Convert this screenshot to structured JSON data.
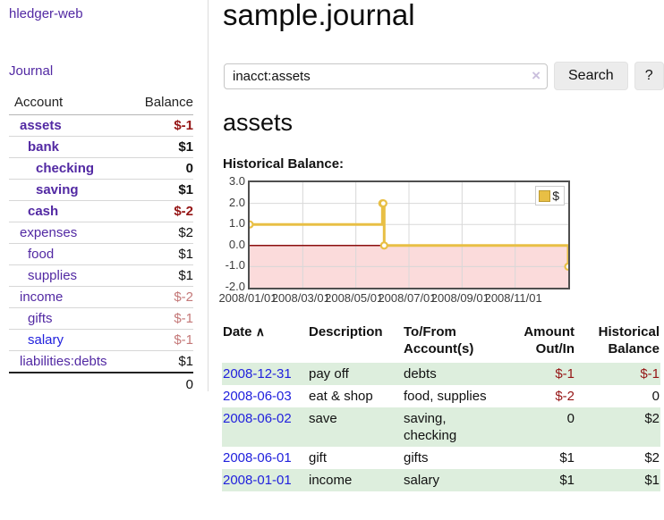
{
  "app": {
    "brand": "hledger-web"
  },
  "nav": {
    "journal": "Journal"
  },
  "sidebar": {
    "headers": {
      "account": "Account",
      "balance": "Balance"
    },
    "accounts": [
      {
        "account": "assets",
        "balance": "$-1",
        "depth": 1,
        "bold": true,
        "bal_class": "neg-strong"
      },
      {
        "account": "bank",
        "balance": "$1",
        "depth": 2,
        "bold": true,
        "bal_class": ""
      },
      {
        "account": "checking",
        "balance": "0",
        "depth": 3,
        "bold": true,
        "bal_class": ""
      },
      {
        "account": "saving",
        "balance": "$1",
        "depth": 3,
        "bold": true,
        "bal_class": ""
      },
      {
        "account": "cash",
        "balance": "$-2",
        "depth": 2,
        "bold": true,
        "bal_class": "neg-strong"
      },
      {
        "account": "expenses",
        "balance": "$2",
        "depth": 1,
        "bold": false,
        "bal_class": ""
      },
      {
        "account": "food",
        "balance": "$1",
        "depth": 2,
        "bold": false,
        "bal_class": ""
      },
      {
        "account": "supplies",
        "balance": "$1",
        "depth": 2,
        "bold": false,
        "bal_class": ""
      },
      {
        "account": "income",
        "balance": "$-2",
        "depth": 1,
        "bold": false,
        "bal_class": "neg-soft"
      },
      {
        "account": "gifts",
        "balance": "$-1",
        "depth": 2,
        "bold": false,
        "bal_class": "neg-soft"
      },
      {
        "account": "salary",
        "balance": "$-1",
        "depth": 2,
        "bold": false,
        "bal_class": "neg-soft",
        "link_class": "blue"
      },
      {
        "account": "liabilities:debts",
        "balance": "$1",
        "depth": 1,
        "bold": false,
        "bal_class": ""
      }
    ],
    "total": "0"
  },
  "header": {
    "title": "sample.journal"
  },
  "search": {
    "value": "inacct:assets",
    "clear_icon": "×",
    "button_label": "Search",
    "help_label": "?"
  },
  "main": {
    "heading": "assets",
    "chart_label": "Historical Balance:"
  },
  "chart_data": {
    "type": "line",
    "title": "Historical Balance:",
    "step": true,
    "series": [
      {
        "name": "$",
        "color": "#e8bf45",
        "points": [
          [
            "2008/01/01",
            1.0
          ],
          [
            "2008/06/01",
            2.0
          ],
          [
            "2008/06/02",
            2.0
          ],
          [
            "2008/06/03",
            0.0
          ],
          [
            "2008/12/31",
            -1.0
          ]
        ]
      }
    ],
    "ylim": [
      -2.0,
      3.0
    ],
    "yticks": [
      3.0,
      2.0,
      1.0,
      0.0,
      -1.0,
      -2.0
    ],
    "xticks": [
      "2008/01/01",
      "2008/03/01",
      "2008/05/01",
      "2008/07/01",
      "2008/09/01",
      "2008/11/01"
    ],
    "x_start": "2008/01/01",
    "x_end": "2008/12/31",
    "legend": {
      "label": "$",
      "position": "top-right"
    },
    "grid": true,
    "negative_fill": "#fbdbdb",
    "zero_line_color": "#8b0f0f",
    "grid_color": "#d8d8d8"
  },
  "register": {
    "headers": {
      "date": "Date",
      "sort_arrow": "∧",
      "description": "Description",
      "accounts": "To/From Account(s)",
      "amount": "Amount Out/In",
      "balance": "Historical Balance"
    },
    "rows": [
      {
        "date": "2008-12-31",
        "description": "pay off",
        "accounts": "debts",
        "amount": "$-1",
        "amount_class": "neg-strong",
        "balance": "$-1",
        "balance_class": "neg-strong"
      },
      {
        "date": "2008-06-03",
        "description": "eat & shop",
        "accounts": "food, supplies",
        "amount": "$-2",
        "amount_class": "neg-strong",
        "balance": "0",
        "balance_class": ""
      },
      {
        "date": "2008-06-02",
        "description": "save",
        "accounts": "saving, checking",
        "amount": "0",
        "amount_class": "",
        "balance": "$2",
        "balance_class": ""
      },
      {
        "date": "2008-06-01",
        "description": "gift",
        "accounts": "gifts",
        "amount": "$1",
        "amount_class": "",
        "balance": "$2",
        "balance_class": ""
      },
      {
        "date": "2008-01-01",
        "description": "income",
        "accounts": "salary",
        "amount": "$1",
        "amount_class": "",
        "balance": "$1",
        "balance_class": ""
      }
    ]
  }
}
